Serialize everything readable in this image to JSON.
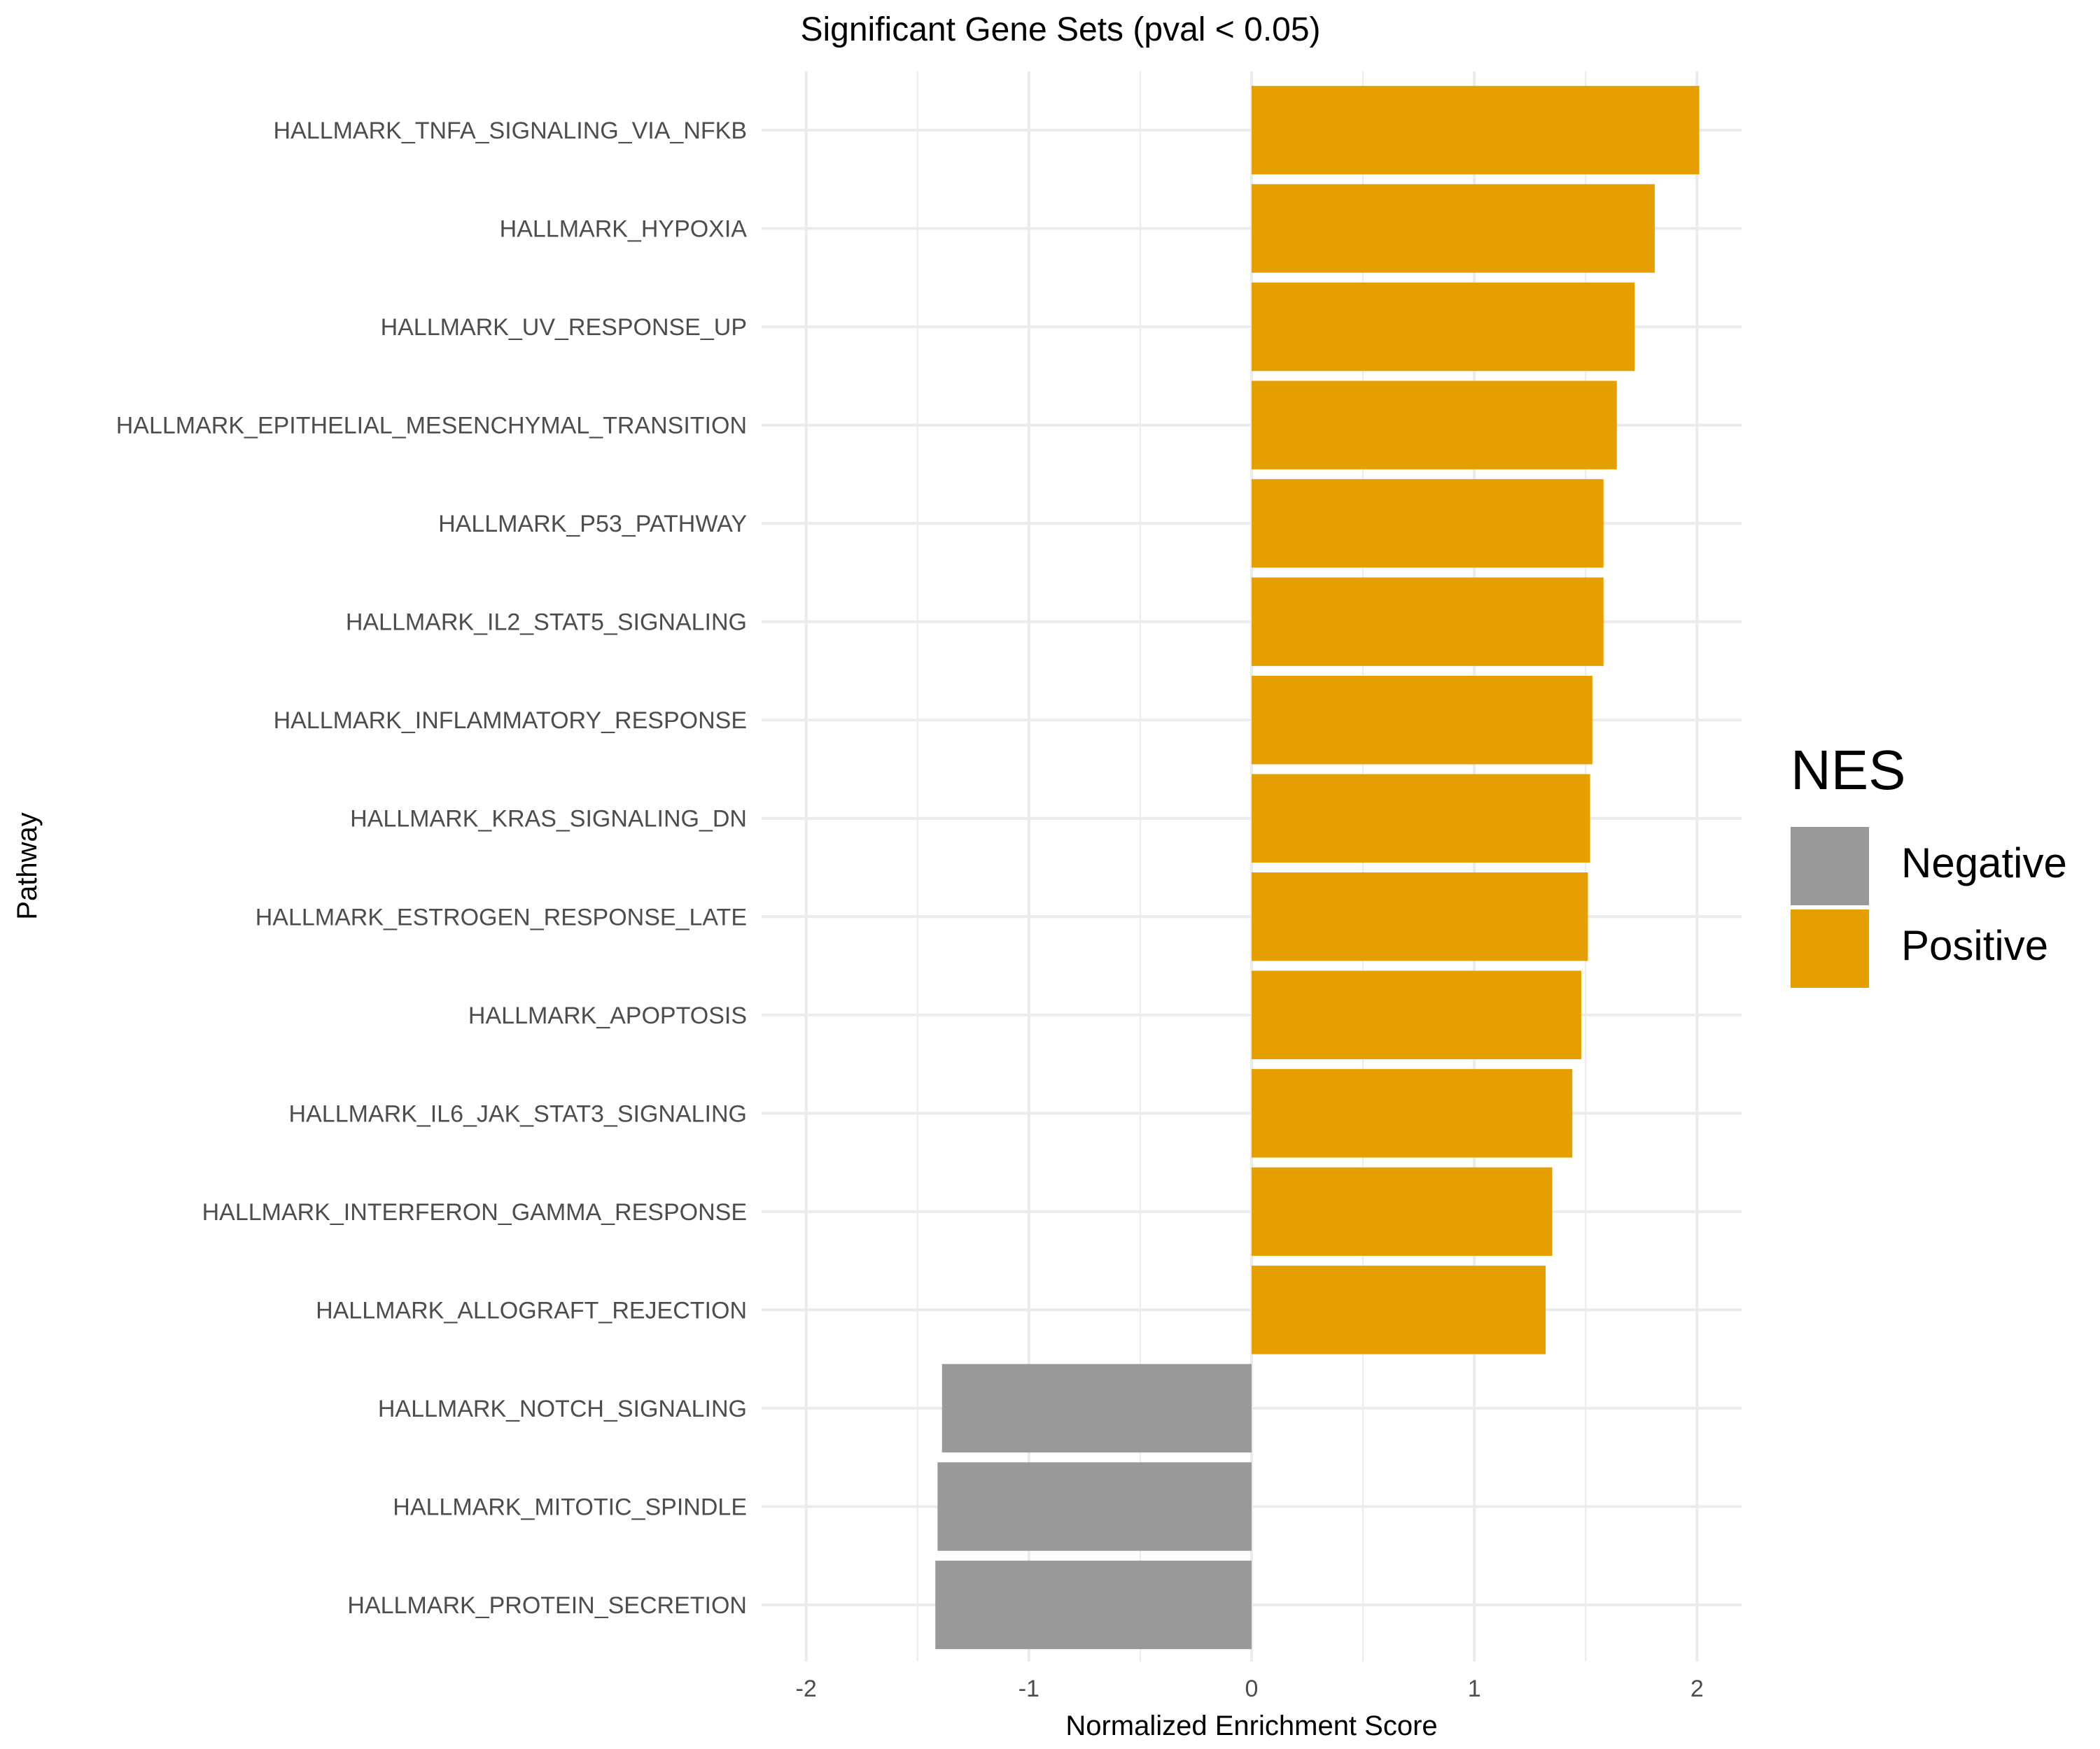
{
  "chart_data": {
    "type": "bar",
    "orientation": "horizontal",
    "title": "Significant Gene Sets (pval < 0.05)",
    "xlabel": "Normalized Enrichment Score",
    "ylabel": "Pathway",
    "xlim": [
      -2.2,
      2.2
    ],
    "x_ticks": [
      -2,
      -1,
      0,
      1,
      2
    ],
    "x_tick_labels": [
      "-2",
      "-1",
      "0",
      "1",
      "2"
    ],
    "grid": true,
    "categories": [
      "HALLMARK_TNFA_SIGNALING_VIA_NFKB",
      "HALLMARK_HYPOXIA",
      "HALLMARK_UV_RESPONSE_UP",
      "HALLMARK_EPITHELIAL_MESENCHYMAL_TRANSITION",
      "HALLMARK_P53_PATHWAY",
      "HALLMARK_IL2_STAT5_SIGNALING",
      "HALLMARK_INFLAMMATORY_RESPONSE",
      "HALLMARK_KRAS_SIGNALING_DN",
      "HALLMARK_ESTROGEN_RESPONSE_LATE",
      "HALLMARK_APOPTOSIS",
      "HALLMARK_IL6_JAK_STAT3_SIGNALING",
      "HALLMARK_INTERFERON_GAMMA_RESPONSE",
      "HALLMARK_ALLOGRAFT_REJECTION",
      "HALLMARK_NOTCH_SIGNALING",
      "HALLMARK_MITOTIC_SPINDLE",
      "HALLMARK_PROTEIN_SECRETION"
    ],
    "values": [
      2.01,
      1.81,
      1.72,
      1.64,
      1.58,
      1.58,
      1.53,
      1.52,
      1.51,
      1.48,
      1.44,
      1.35,
      1.32,
      -1.39,
      -1.41,
      -1.42
    ],
    "legend": {
      "title": "NES",
      "position": "right",
      "entries": [
        {
          "label": "Negative",
          "color": "#999999"
        },
        {
          "label": "Positive",
          "color": "#E69F00"
        }
      ]
    },
    "colors": {
      "positive": "#E69F00",
      "negative": "#999999",
      "grid": "#EBEBEB",
      "text": "#4D4D4D"
    }
  }
}
